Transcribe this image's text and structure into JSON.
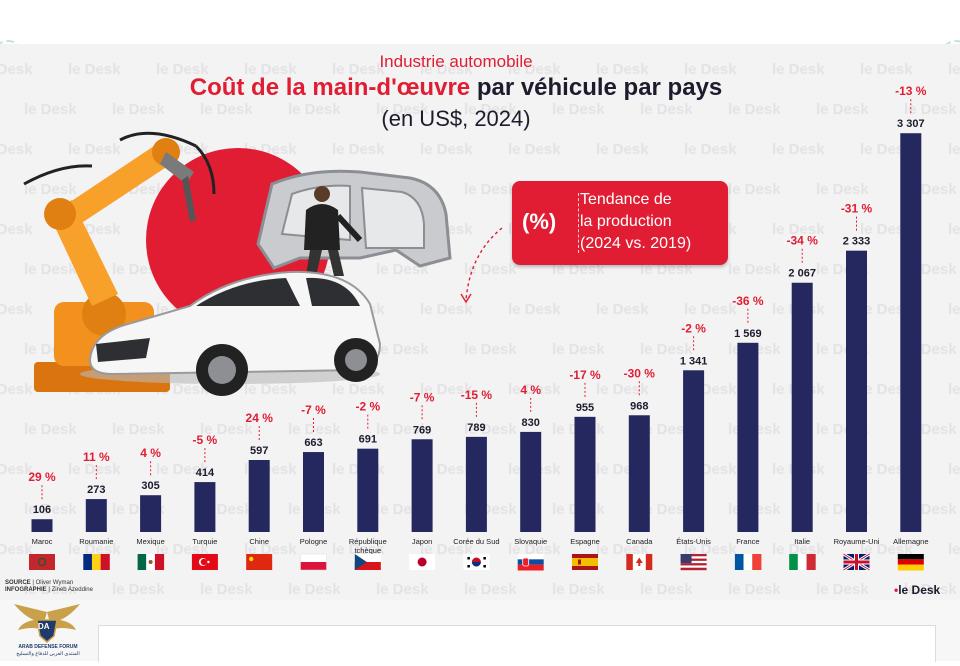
{
  "header": {
    "kicker": "Industrie automobile",
    "title_red": "Coût de la main-d'œuvre",
    "title_dark": "par véhicule par pays",
    "subtitle": "(en US$, 2024)"
  },
  "legend_box": {
    "symbol": "(%)",
    "line1": "Tendance de",
    "line2": "la production",
    "line3": "(2024 vs. 2019)"
  },
  "watermark": {
    "text": "le Desk"
  },
  "footer": {
    "source_label": "SOURCE",
    "source_value": "Oliver Wyman",
    "infographic_label": "INFOGRAPHIE",
    "infographic_value": "Zineb Azeddine",
    "brand": "le Desk"
  },
  "forum_logo": {
    "initials": "DA",
    "name": "ARAB DEFENSE FORUM",
    "arabic": "المنتدى العربي للدفاع والتسليح"
  },
  "colors": {
    "bar": "#24285f",
    "accent_red": "#e11d33",
    "dark_text": "#1e1b2e",
    "bg": "#f3f3f3"
  },
  "chart_data": {
    "type": "bar",
    "title": "Coût de la main-d'œuvre par véhicule par pays",
    "subtitle": "(en US$, 2024)",
    "series_name": "Coût de la main-d'œuvre (US$)",
    "categories": [
      "Maroc",
      "Roumanie",
      "Mexique",
      "Turquie",
      "Chine",
      "Pologne",
      "République tchèque",
      "Japon",
      "Corée du Sud",
      "Slovaquie",
      "Espagne",
      "Canada",
      "États-Unis",
      "France",
      "Italie",
      "Royaume-Uni",
      "Allemagne"
    ],
    "values": [
      106,
      273,
      305,
      414,
      597,
      663,
      691,
      769,
      789,
      830,
      955,
      968,
      1341,
      1569,
      2067,
      2333,
      3307
    ],
    "value_labels": [
      "106",
      "273",
      "305",
      "414",
      "597",
      "663",
      "691",
      "769",
      "789",
      "830",
      "955",
      "968",
      "1 341",
      "1 569",
      "2 067",
      "2 333",
      "3 307"
    ],
    "trend_labels": [
      "29 %",
      "11 %",
      "4 %",
      "-5 %",
      "24 %",
      "-7 %",
      "-2 %",
      "-7 %",
      "-15 %",
      "4 %",
      "-17 %",
      "-30 %",
      "-2 %",
      "-36 %",
      "-34 %",
      "-31 %",
      "-13 %"
    ],
    "trend_series_name": "Tendance de la production (2024 vs. 2019)",
    "flags": [
      "morocco-flag",
      "romania-flag",
      "mexico-flag",
      "turkey-flag",
      "china-flag",
      "poland-flag",
      "czechia-flag",
      "japan-flag",
      "south-korea-flag",
      "slovakia-flag",
      "spain-flag",
      "canada-flag",
      "usa-flag",
      "france-flag",
      "italy-flag",
      "uk-flag",
      "germany-flag"
    ],
    "ylim": [
      0,
      3400
    ],
    "xlabel": "",
    "ylabel": "",
    "grid": false,
    "legend": "center-right"
  }
}
